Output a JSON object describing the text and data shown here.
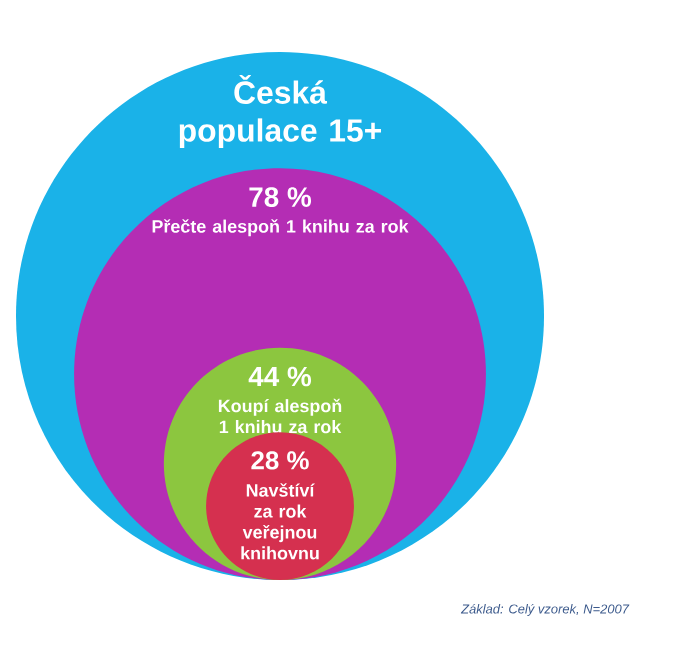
{
  "chart_data": {
    "type": "other",
    "title": "Česká populace 15+",
    "color": "#1ab2e8",
    "categories": [
      "Přečte alespoň 1 knihu za rok",
      "Koupí alespoň 1 knihu za rok",
      "Navštíví za rok veřejnou knihovnu"
    ],
    "values": [
      78,
      44,
      28
    ],
    "value_labels": [
      "78 %",
      "44 %",
      "28 %"
    ],
    "colors": [
      "#b42db4",
      "#8cc63f",
      "#d5304f"
    ],
    "annotations": [
      "Základ: Celý vzorek, N=2007"
    ]
  }
}
